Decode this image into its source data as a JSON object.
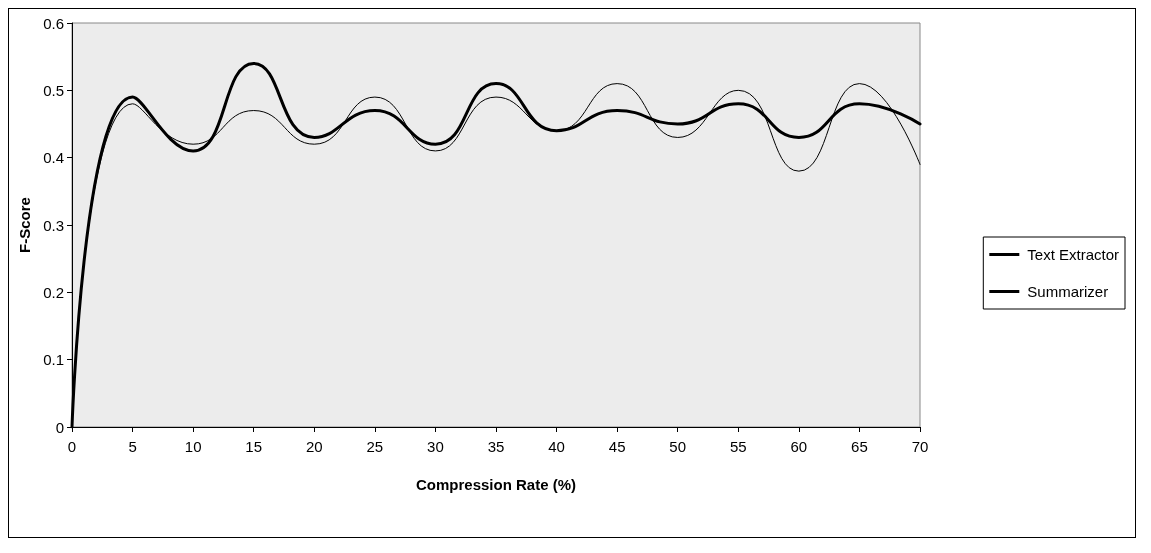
{
  "chart_data": {
    "type": "line",
    "xlabel": "Compression Rate (%)",
    "ylabel": "F-Score",
    "x": [
      0,
      5,
      10,
      15,
      20,
      25,
      30,
      35,
      40,
      45,
      50,
      55,
      60,
      65,
      70
    ],
    "series": [
      {
        "name": "Text Extractor",
        "color": "#000000",
        "values": [
          0,
          0.49,
          0.41,
          0.54,
          0.43,
          0.47,
          0.42,
          0.51,
          0.44,
          0.47,
          0.45,
          0.48,
          0.43,
          0.48,
          0.45
        ]
      },
      {
        "name": "Summarizer",
        "color": "#000000",
        "values": [
          0,
          0.48,
          0.42,
          0.47,
          0.42,
          0.49,
          0.41,
          0.49,
          0.44,
          0.51,
          0.43,
          0.5,
          0.38,
          0.51,
          0.39
        ]
      }
    ],
    "xlim": [
      0,
      70
    ],
    "xticks": [
      0,
      5,
      10,
      15,
      20,
      25,
      30,
      35,
      40,
      45,
      50,
      55,
      60,
      65,
      70
    ],
    "ylim": [
      0,
      0.6
    ],
    "yticks": [
      0,
      0.1,
      0.2,
      0.3,
      0.4,
      0.5,
      0.6
    ],
    "grid": false,
    "legend": "right",
    "marker": "none",
    "line_style": "solid"
  }
}
